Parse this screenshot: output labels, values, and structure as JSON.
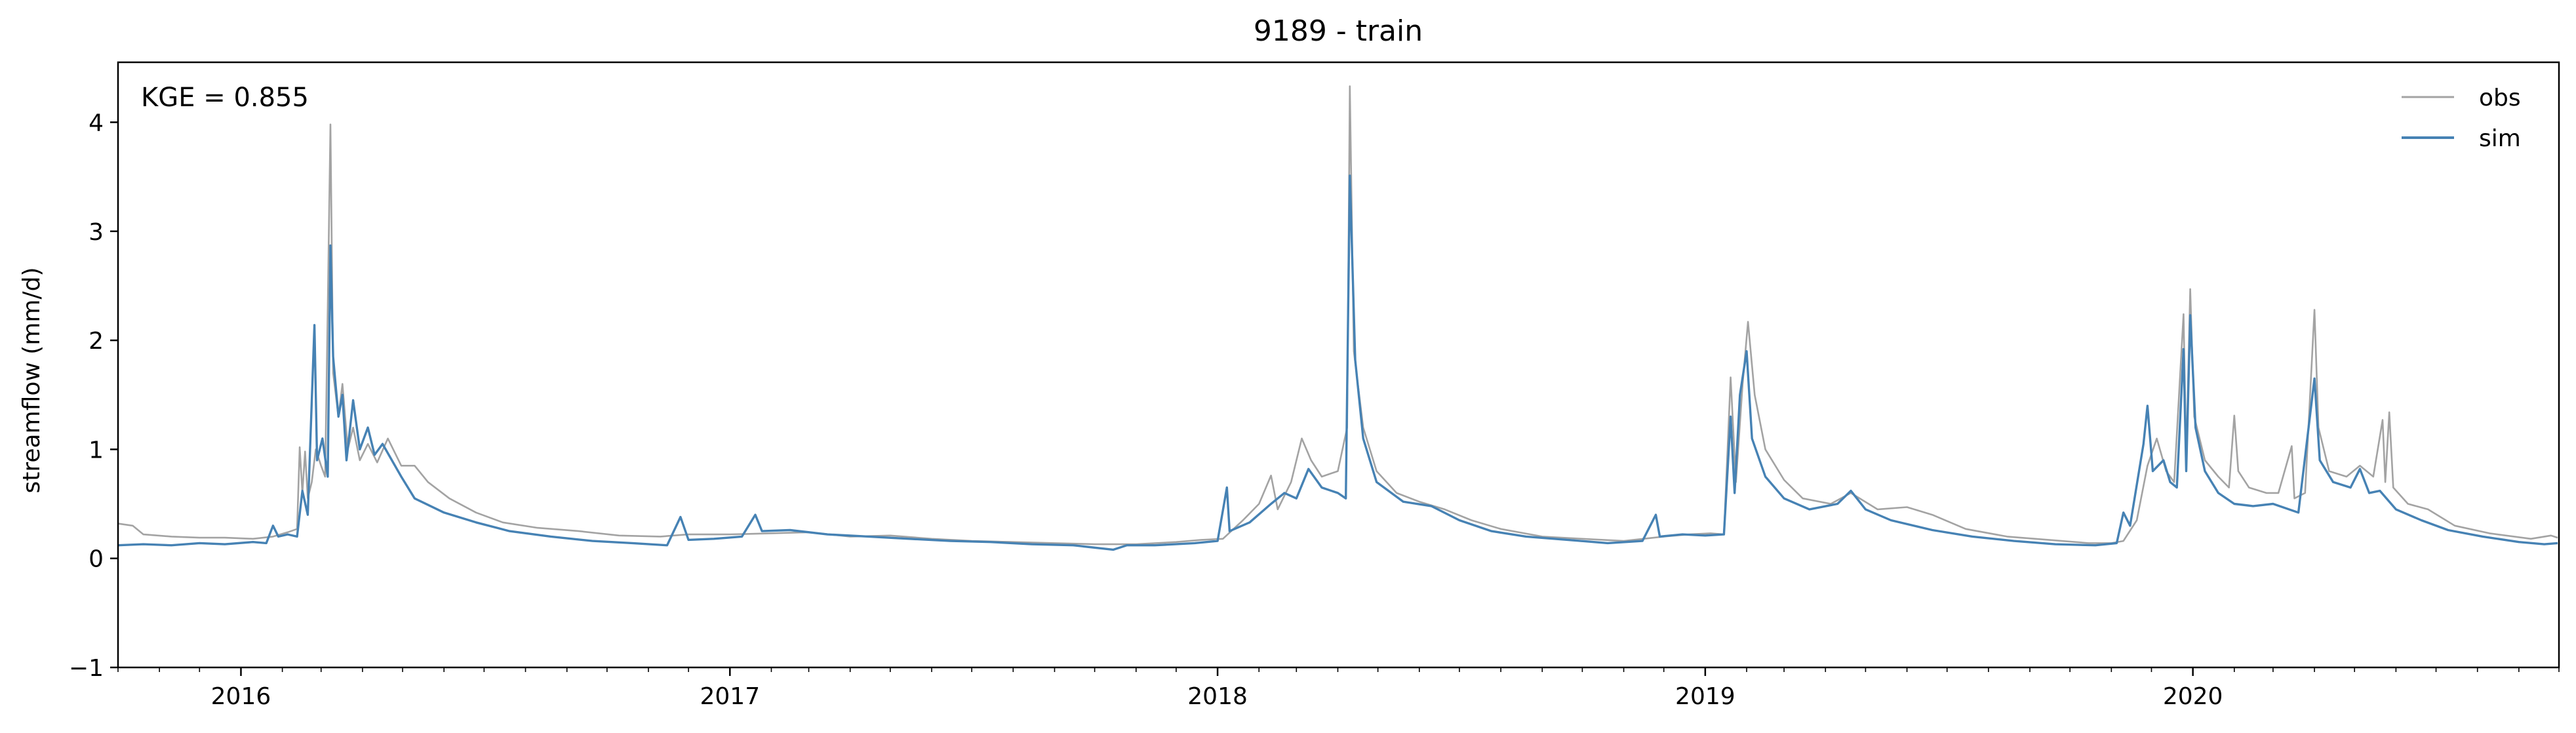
{
  "chart_data": {
    "type": "line",
    "title": "9189 - train",
    "xlabel": "",
    "ylabel": "streamflow (mm/d)",
    "annotation": "KGE = 0.855",
    "x_domain": [
      "2015-10-01",
      "2020-10-01"
    ],
    "xlim": [
      "2015-10-01",
      "2020-09-30"
    ],
    "ylim": [
      -1,
      4.55
    ],
    "y_ticks": [
      -1,
      0,
      1,
      2,
      3,
      4
    ],
    "x_ticks": [
      {
        "date": "2016-01-01",
        "label": "2016"
      },
      {
        "date": "2017-01-01",
        "label": "2017"
      },
      {
        "date": "2018-01-01",
        "label": "2018"
      },
      {
        "date": "2019-01-01",
        "label": "2019"
      },
      {
        "date": "2020-01-01",
        "label": "2020"
      }
    ],
    "grid": false,
    "legend_position": "top-right",
    "series": [
      {
        "name": "obs",
        "color": "#a3a3a3",
        "points": [
          [
            "2015-10-01",
            0.32
          ],
          [
            "2015-10-12",
            0.3
          ],
          [
            "2015-10-20",
            0.22
          ],
          [
            "2015-11-10",
            0.2
          ],
          [
            "2015-12-01",
            0.19
          ],
          [
            "2015-12-20",
            0.19
          ],
          [
            "2016-01-10",
            0.18
          ],
          [
            "2016-01-25",
            0.2
          ],
          [
            "2016-02-05",
            0.24
          ],
          [
            "2016-02-12",
            0.27
          ],
          [
            "2016-02-14",
            1.02
          ],
          [
            "2016-02-16",
            0.6
          ],
          [
            "2016-02-18",
            0.98
          ],
          [
            "2016-02-20",
            0.55
          ],
          [
            "2016-02-23",
            0.7
          ],
          [
            "2016-02-26",
            1.0
          ],
          [
            "2016-03-01",
            0.85
          ],
          [
            "2016-03-04",
            0.75
          ],
          [
            "2016-03-06",
            2.3
          ],
          [
            "2016-03-08",
            3.98
          ],
          [
            "2016-03-10",
            1.7
          ],
          [
            "2016-03-14",
            1.3
          ],
          [
            "2016-03-17",
            1.6
          ],
          [
            "2016-03-21",
            1.0
          ],
          [
            "2016-03-25",
            1.2
          ],
          [
            "2016-03-30",
            0.9
          ],
          [
            "2016-04-05",
            1.05
          ],
          [
            "2016-04-12",
            0.88
          ],
          [
            "2016-04-20",
            1.1
          ],
          [
            "2016-04-30",
            0.85
          ],
          [
            "2016-05-10",
            0.85
          ],
          [
            "2016-05-20",
            0.7
          ],
          [
            "2016-06-05",
            0.55
          ],
          [
            "2016-06-25",
            0.42
          ],
          [
            "2016-07-15",
            0.33
          ],
          [
            "2016-08-10",
            0.28
          ],
          [
            "2016-09-10",
            0.25
          ],
          [
            "2016-10-10",
            0.21
          ],
          [
            "2016-11-10",
            0.2
          ],
          [
            "2016-12-01",
            0.22
          ],
          [
            "2017-01-01",
            0.22
          ],
          [
            "2017-02-01",
            0.23
          ],
          [
            "2017-03-01",
            0.24
          ],
          [
            "2017-04-01",
            0.2
          ],
          [
            "2017-05-01",
            0.21
          ],
          [
            "2017-06-01",
            0.18
          ],
          [
            "2017-07-01",
            0.16
          ],
          [
            "2017-08-01",
            0.15
          ],
          [
            "2017-09-01",
            0.14
          ],
          [
            "2017-10-01",
            0.13
          ],
          [
            "2017-11-01",
            0.13
          ],
          [
            "2017-12-01",
            0.15
          ],
          [
            "2017-12-20",
            0.17
          ],
          [
            "2018-01-05",
            0.18
          ],
          [
            "2018-01-20",
            0.35
          ],
          [
            "2018-02-01",
            0.5
          ],
          [
            "2018-02-10",
            0.76
          ],
          [
            "2018-02-15",
            0.45
          ],
          [
            "2018-02-25",
            0.7
          ],
          [
            "2018-03-05",
            1.1
          ],
          [
            "2018-03-12",
            0.9
          ],
          [
            "2018-03-20",
            0.75
          ],
          [
            "2018-04-01",
            0.8
          ],
          [
            "2018-04-08",
            1.2
          ],
          [
            "2018-04-10",
            4.33
          ],
          [
            "2018-04-13",
            1.9
          ],
          [
            "2018-04-20",
            1.2
          ],
          [
            "2018-04-30",
            0.8
          ],
          [
            "2018-05-15",
            0.6
          ],
          [
            "2018-06-01",
            0.52
          ],
          [
            "2018-06-20",
            0.45
          ],
          [
            "2018-07-10",
            0.35
          ],
          [
            "2018-08-01",
            0.27
          ],
          [
            "2018-09-01",
            0.2
          ],
          [
            "2018-10-01",
            0.18
          ],
          [
            "2018-11-01",
            0.16
          ],
          [
            "2018-12-01",
            0.2
          ],
          [
            "2018-12-20",
            0.22
          ],
          [
            "2019-01-05",
            0.23
          ],
          [
            "2019-01-15",
            0.22
          ],
          [
            "2019-01-20",
            1.66
          ],
          [
            "2019-01-24",
            0.7
          ],
          [
            "2019-01-29",
            1.6
          ],
          [
            "2019-02-02",
            2.17
          ],
          [
            "2019-02-07",
            1.5
          ],
          [
            "2019-02-15",
            1.0
          ],
          [
            "2019-03-01",
            0.72
          ],
          [
            "2019-03-15",
            0.55
          ],
          [
            "2019-04-05",
            0.5
          ],
          [
            "2019-04-20",
            0.6
          ],
          [
            "2019-05-10",
            0.45
          ],
          [
            "2019-06-01",
            0.47
          ],
          [
            "2019-06-20",
            0.4
          ],
          [
            "2019-07-15",
            0.27
          ],
          [
            "2019-08-15",
            0.2
          ],
          [
            "2019-09-15",
            0.17
          ],
          [
            "2019-10-15",
            0.14
          ],
          [
            "2019-11-01",
            0.14
          ],
          [
            "2019-11-10",
            0.16
          ],
          [
            "2019-11-20",
            0.35
          ],
          [
            "2019-11-28",
            0.85
          ],
          [
            "2019-12-05",
            1.1
          ],
          [
            "2019-12-12",
            0.8
          ],
          [
            "2019-12-18",
            0.7
          ],
          [
            "2019-12-25",
            2.24
          ],
          [
            "2019-12-27",
            0.9
          ],
          [
            "2019-12-30",
            2.47
          ],
          [
            "2020-01-02",
            1.3
          ],
          [
            "2020-01-10",
            0.9
          ],
          [
            "2020-01-20",
            0.75
          ],
          [
            "2020-01-28",
            0.65
          ],
          [
            "2020-02-01",
            1.31
          ],
          [
            "2020-02-04",
            0.8
          ],
          [
            "2020-02-12",
            0.65
          ],
          [
            "2020-02-25",
            0.6
          ],
          [
            "2020-03-05",
            0.6
          ],
          [
            "2020-03-15",
            1.03
          ],
          [
            "2020-03-17",
            0.55
          ],
          [
            "2020-03-25",
            0.6
          ],
          [
            "2020-04-01",
            2.28
          ],
          [
            "2020-04-04",
            1.2
          ],
          [
            "2020-04-12",
            0.8
          ],
          [
            "2020-04-25",
            0.75
          ],
          [
            "2020-05-05",
            0.85
          ],
          [
            "2020-05-15",
            0.75
          ],
          [
            "2020-05-22",
            1.27
          ],
          [
            "2020-05-24",
            0.7
          ],
          [
            "2020-05-27",
            1.34
          ],
          [
            "2020-05-30",
            0.65
          ],
          [
            "2020-06-10",
            0.5
          ],
          [
            "2020-06-25",
            0.45
          ],
          [
            "2020-07-15",
            0.3
          ],
          [
            "2020-08-10",
            0.23
          ],
          [
            "2020-09-10",
            0.18
          ],
          [
            "2020-09-25",
            0.21
          ],
          [
            "2020-09-30",
            0.19
          ]
        ]
      },
      {
        "name": "sim",
        "color": "#4682b4",
        "points": [
          [
            "2015-10-01",
            0.12
          ],
          [
            "2015-10-20",
            0.13
          ],
          [
            "2015-11-10",
            0.12
          ],
          [
            "2015-12-01",
            0.14
          ],
          [
            "2015-12-20",
            0.13
          ],
          [
            "2016-01-10",
            0.15
          ],
          [
            "2016-01-20",
            0.14
          ],
          [
            "2016-01-25",
            0.3
          ],
          [
            "2016-01-29",
            0.2
          ],
          [
            "2016-02-05",
            0.22
          ],
          [
            "2016-02-12",
            0.2
          ],
          [
            "2016-02-16",
            0.62
          ],
          [
            "2016-02-20",
            0.4
          ],
          [
            "2016-02-25",
            2.14
          ],
          [
            "2016-02-27",
            0.9
          ],
          [
            "2016-03-02",
            1.1
          ],
          [
            "2016-03-06",
            0.75
          ],
          [
            "2016-03-08",
            2.87
          ],
          [
            "2016-03-10",
            1.85
          ],
          [
            "2016-03-14",
            1.3
          ],
          [
            "2016-03-17",
            1.5
          ],
          [
            "2016-03-20",
            0.9
          ],
          [
            "2016-03-25",
            1.45
          ],
          [
            "2016-03-30",
            1.0
          ],
          [
            "2016-04-05",
            1.2
          ],
          [
            "2016-04-10",
            0.95
          ],
          [
            "2016-04-16",
            1.05
          ],
          [
            "2016-04-30",
            0.75
          ],
          [
            "2016-05-10",
            0.55
          ],
          [
            "2016-06-01",
            0.42
          ],
          [
            "2016-06-25",
            0.33
          ],
          [
            "2016-07-20",
            0.25
          ],
          [
            "2016-08-20",
            0.2
          ],
          [
            "2016-09-20",
            0.16
          ],
          [
            "2016-10-20",
            0.14
          ],
          [
            "2016-11-15",
            0.12
          ],
          [
            "2016-11-25",
            0.38
          ],
          [
            "2016-12-01",
            0.17
          ],
          [
            "2016-12-20",
            0.18
          ],
          [
            "2017-01-10",
            0.2
          ],
          [
            "2017-01-20",
            0.4
          ],
          [
            "2017-01-25",
            0.25
          ],
          [
            "2017-02-15",
            0.26
          ],
          [
            "2017-03-15",
            0.22
          ],
          [
            "2017-04-15",
            0.2
          ],
          [
            "2017-05-15",
            0.18
          ],
          [
            "2017-06-15",
            0.16
          ],
          [
            "2017-07-15",
            0.15
          ],
          [
            "2017-08-15",
            0.13
          ],
          [
            "2017-09-15",
            0.12
          ],
          [
            "2017-10-15",
            0.08
          ],
          [
            "2017-10-25",
            0.12
          ],
          [
            "2017-11-15",
            0.12
          ],
          [
            "2017-12-15",
            0.14
          ],
          [
            "2018-01-01",
            0.16
          ],
          [
            "2018-01-08",
            0.65
          ],
          [
            "2018-01-10",
            0.25
          ],
          [
            "2018-01-25",
            0.33
          ],
          [
            "2018-02-10",
            0.5
          ],
          [
            "2018-02-20",
            0.6
          ],
          [
            "2018-03-01",
            0.55
          ],
          [
            "2018-03-10",
            0.82
          ],
          [
            "2018-03-20",
            0.65
          ],
          [
            "2018-04-01",
            0.6
          ],
          [
            "2018-04-07",
            0.55
          ],
          [
            "2018-04-10",
            3.51
          ],
          [
            "2018-04-14",
            1.82
          ],
          [
            "2018-04-20",
            1.1
          ],
          [
            "2018-04-30",
            0.7
          ],
          [
            "2018-05-20",
            0.52
          ],
          [
            "2018-06-10",
            0.48
          ],
          [
            "2018-07-01",
            0.35
          ],
          [
            "2018-07-25",
            0.25
          ],
          [
            "2018-08-20",
            0.2
          ],
          [
            "2018-09-20",
            0.17
          ],
          [
            "2018-10-20",
            0.14
          ],
          [
            "2018-11-15",
            0.16
          ],
          [
            "2018-11-25",
            0.4
          ],
          [
            "2018-11-28",
            0.2
          ],
          [
            "2018-12-15",
            0.22
          ],
          [
            "2019-01-01",
            0.21
          ],
          [
            "2019-01-15",
            0.22
          ],
          [
            "2019-01-20",
            1.3
          ],
          [
            "2019-01-23",
            0.6
          ],
          [
            "2019-01-27",
            1.5
          ],
          [
            "2019-02-01",
            1.9
          ],
          [
            "2019-02-05",
            1.1
          ],
          [
            "2019-02-15",
            0.75
          ],
          [
            "2019-03-01",
            0.55
          ],
          [
            "2019-03-20",
            0.45
          ],
          [
            "2019-04-10",
            0.5
          ],
          [
            "2019-04-20",
            0.62
          ],
          [
            "2019-05-01",
            0.45
          ],
          [
            "2019-05-20",
            0.35
          ],
          [
            "2019-06-20",
            0.26
          ],
          [
            "2019-07-20",
            0.2
          ],
          [
            "2019-08-20",
            0.16
          ],
          [
            "2019-09-20",
            0.13
          ],
          [
            "2019-10-20",
            0.12
          ],
          [
            "2019-11-05",
            0.14
          ],
          [
            "2019-11-10",
            0.42
          ],
          [
            "2019-11-15",
            0.3
          ],
          [
            "2019-11-25",
            1.05
          ],
          [
            "2019-11-28",
            1.4
          ],
          [
            "2019-12-02",
            0.8
          ],
          [
            "2019-12-10",
            0.9
          ],
          [
            "2019-12-15",
            0.7
          ],
          [
            "2019-12-20",
            0.65
          ],
          [
            "2019-12-25",
            1.92
          ],
          [
            "2019-12-27",
            0.8
          ],
          [
            "2019-12-30",
            2.23
          ],
          [
            "2020-01-03",
            1.2
          ],
          [
            "2020-01-10",
            0.8
          ],
          [
            "2020-01-20",
            0.6
          ],
          [
            "2020-02-01",
            0.5
          ],
          [
            "2020-02-15",
            0.48
          ],
          [
            "2020-03-01",
            0.5
          ],
          [
            "2020-03-20",
            0.42
          ],
          [
            "2020-04-01",
            1.65
          ],
          [
            "2020-04-05",
            0.9
          ],
          [
            "2020-04-15",
            0.7
          ],
          [
            "2020-04-28",
            0.65
          ],
          [
            "2020-05-05",
            0.82
          ],
          [
            "2020-05-12",
            0.6
          ],
          [
            "2020-05-20",
            0.62
          ],
          [
            "2020-06-01",
            0.45
          ],
          [
            "2020-06-20",
            0.35
          ],
          [
            "2020-07-10",
            0.26
          ],
          [
            "2020-08-05",
            0.2
          ],
          [
            "2020-09-01",
            0.15
          ],
          [
            "2020-09-20",
            0.13
          ],
          [
            "2020-09-30",
            0.14
          ]
        ]
      }
    ]
  }
}
